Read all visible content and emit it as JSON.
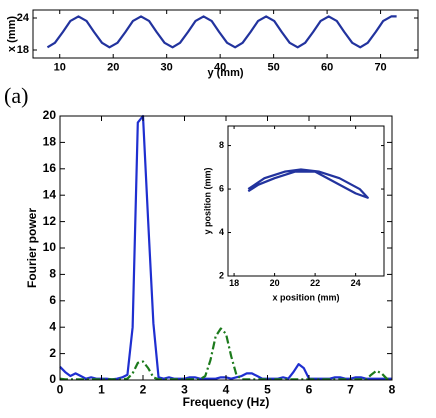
{
  "chart_data": [
    {
      "type": "line",
      "xlabel": "y (mm)",
      "ylabel": "x (mm)",
      "x": [
        7.7,
        9.1,
        10.6,
        12.0,
        13.5,
        15.0,
        16.4,
        17.9,
        19.3,
        20.8,
        22.3,
        23.7,
        25.2,
        26.7,
        28.1,
        29.6,
        31.1,
        32.5,
        34.0,
        35.4,
        36.9,
        38.4,
        39.8,
        41.3,
        42.8,
        44.2,
        45.7,
        47.1,
        48.6,
        50.1,
        51.5,
        53.0,
        54.5,
        55.9,
        57.4,
        58.8,
        60.3,
        61.8,
        63.2,
        64.7,
        66.2,
        67.6,
        69.1,
        70.5,
        72.0,
        73.0
      ],
      "series": [
        {
          "color": "#22339e",
          "linestyle": "solid",
          "values": [
            18.5,
            19.35,
            21.4,
            23.45,
            24.3,
            23.45,
            21.4,
            19.35,
            18.5,
            19.35,
            21.4,
            23.45,
            24.3,
            23.45,
            21.4,
            19.35,
            18.5,
            19.35,
            21.4,
            23.45,
            24.3,
            23.45,
            21.4,
            19.35,
            18.5,
            19.35,
            21.4,
            23.45,
            24.3,
            23.45,
            21.4,
            19.35,
            18.5,
            19.35,
            21.4,
            23.45,
            24.3,
            23.45,
            21.4,
            19.35,
            18.5,
            19.35,
            21.4,
            23.45,
            24.3,
            24.3
          ]
        }
      ],
      "xlim": [
        5,
        77
      ],
      "xticks": [
        10,
        20,
        30,
        40,
        50,
        60,
        70
      ],
      "ylim": [
        16.5,
        25.5
      ],
      "yticks": [
        18,
        24
      ]
    },
    {
      "type": "line",
      "xlabel": "Frequency (Hz)",
      "ylabel": "Fourier power",
      "annotation": "(a)",
      "x": [
        0,
        0.125,
        0.25,
        0.375,
        0.5,
        0.625,
        0.75,
        0.875,
        1,
        1.125,
        1.25,
        1.375,
        1.5,
        1.625,
        1.75,
        1.875,
        2,
        2.125,
        2.25,
        2.375,
        2.5,
        2.625,
        2.75,
        2.875,
        3,
        3.125,
        3.25,
        3.375,
        3.5,
        3.625,
        3.75,
        3.875,
        4,
        4.125,
        4.25,
        4.375,
        4.5,
        4.625,
        4.75,
        4.875,
        5,
        5.125,
        5.25,
        5.375,
        5.5,
        5.625,
        5.75,
        5.875,
        6,
        6.125,
        6.25,
        6.375,
        6.5,
        6.625,
        6.75,
        6.875,
        7,
        7.125,
        7.25,
        7.375,
        7.5,
        7.625,
        7.75,
        7.875,
        8
      ],
      "series": [
        {
          "color": "#1f2fd0",
          "linestyle": "solid",
          "values": [
            1.0,
            0.6,
            0.3,
            0.5,
            0.3,
            0.1,
            0.2,
            0.1,
            0.1,
            0.1,
            0.05,
            0.1,
            0.2,
            0.4,
            4,
            19.5,
            20,
            12,
            4.3,
            0.2,
            0.1,
            0.2,
            0.1,
            0.1,
            0.1,
            0.2,
            0.2,
            0.1,
            0.1,
            0.1,
            0.1,
            0.2,
            0.2,
            0.1,
            0.2,
            0.3,
            0.5,
            0.5,
            0.3,
            0.1,
            0.1,
            0.1,
            0.1,
            0.2,
            0.1,
            0.6,
            1.2,
            0.9,
            0.1,
            0.1,
            0.1,
            0.1,
            0.1,
            0.2,
            0.2,
            0.1,
            0.1,
            0.2,
            0.2,
            0.1,
            0.1,
            0.1,
            0.1,
            0.1,
            0.1
          ]
        },
        {
          "color": "#1c7a1c",
          "linestyle": "dash-dot",
          "values": [
            0.1,
            0.05,
            0.05,
            0.05,
            0.05,
            0.05,
            0.05,
            0.05,
            0.05,
            0.05,
            0.05,
            0.05,
            0.05,
            0.1,
            0.5,
            1.3,
            1.4,
            0.9,
            0.2,
            0.05,
            0.05,
            0.05,
            0.05,
            0.05,
            0.05,
            0.05,
            0.05,
            0.05,
            0.3,
            1.5,
            3.3,
            3.9,
            3.5,
            1.8,
            0.4,
            0.05,
            0.05,
            0.05,
            0.05,
            0.05,
            0.05,
            0.05,
            0.05,
            0.05,
            0.05,
            0.05,
            0.05,
            0.05,
            0.05,
            0.05,
            0.05,
            0.05,
            0.05,
            0.05,
            0.05,
            0.05,
            0.05,
            0.05,
            0.05,
            0.05,
            0.4,
            0.7,
            0.5,
            0.1,
            0.05
          ]
        }
      ],
      "xlim": [
        0,
        8
      ],
      "xticks": [
        0,
        1,
        2,
        3,
        4,
        5,
        6,
        7,
        8
      ],
      "ylim": [
        0,
        20
      ],
      "yticks": [
        0,
        2,
        4,
        6,
        8,
        10,
        12,
        14,
        16,
        18,
        20
      ]
    },
    {
      "type": "line",
      "xlabel": "x position (mm)",
      "ylabel": "y position (mm)",
      "x": [
        18.7,
        19.5,
        20.5,
        21.3,
        22.2,
        23.2,
        24.2,
        24.6,
        24.0,
        23.0,
        22.0,
        21.0,
        20.0,
        19.2,
        18.7
      ],
      "series": [
        {
          "color": "#22339e",
          "linestyle": "solid",
          "values": [
            6.0,
            6.5,
            6.8,
            6.9,
            6.8,
            6.5,
            6.0,
            5.6,
            5.8,
            6.3,
            6.8,
            6.8,
            6.5,
            6.2,
            5.9
          ]
        }
      ],
      "xlim": [
        17.7,
        25.4
      ],
      "xticks": [
        18,
        20,
        22,
        24
      ],
      "ylim": [
        2,
        8.9
      ],
      "yticks": [
        2,
        4,
        6,
        8
      ]
    }
  ]
}
